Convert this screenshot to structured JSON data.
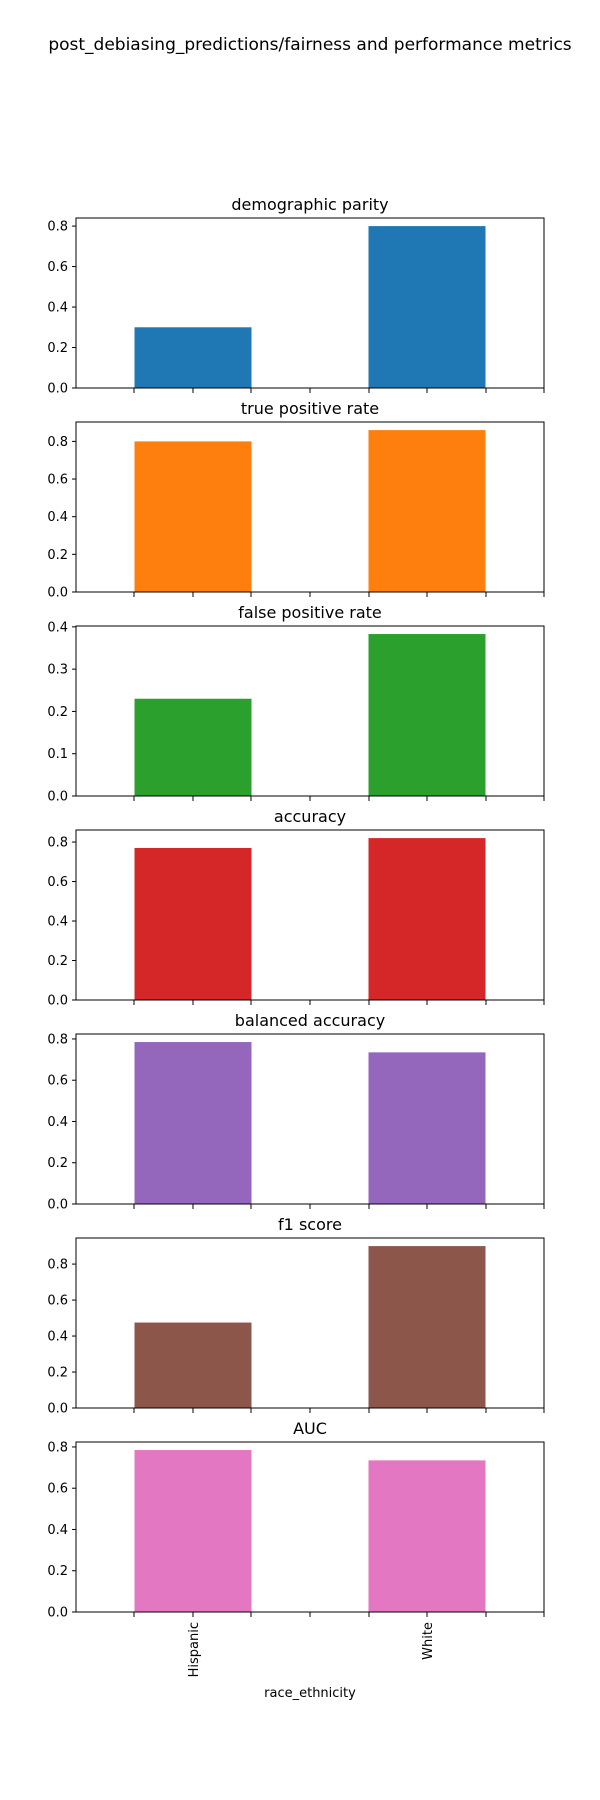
{
  "figure": {
    "title": "post_debiasing_predictions/fairness and performance metrics"
  },
  "chart_data": [
    {
      "type": "bar",
      "title": "demographic parity",
      "categories": [
        "Hispanic",
        "White"
      ],
      "values": [
        0.3,
        0.8
      ],
      "ylim": [
        0,
        0.84
      ],
      "yticks": [
        0.0,
        0.2,
        0.4,
        0.6,
        0.8
      ],
      "ytick_labels": [
        "0.0",
        "0.2",
        "0.4",
        "0.6",
        "0.8"
      ],
      "color": "#1f77b4",
      "grid": false
    },
    {
      "type": "bar",
      "title": "true positive rate",
      "categories": [
        "Hispanic",
        "White"
      ],
      "values": [
        0.8,
        0.86
      ],
      "ylim": [
        0,
        0.903
      ],
      "yticks": [
        0.0,
        0.2,
        0.4,
        0.6,
        0.8
      ],
      "ytick_labels": [
        "0.0",
        "0.2",
        "0.4",
        "0.6",
        "0.8"
      ],
      "color": "#ff7f0e",
      "grid": false
    },
    {
      "type": "bar",
      "title": "false positive rate",
      "categories": [
        "Hispanic",
        "White"
      ],
      "values": [
        0.23,
        0.383
      ],
      "ylim": [
        0,
        0.402
      ],
      "yticks": [
        0.0,
        0.1,
        0.2,
        0.3,
        0.4
      ],
      "ytick_labels": [
        "0.0",
        "0.1",
        "0.2",
        "0.3",
        "0.4"
      ],
      "color": "#2ca02c",
      "grid": false
    },
    {
      "type": "bar",
      "title": "accuracy",
      "categories": [
        "Hispanic",
        "White"
      ],
      "values": [
        0.77,
        0.82
      ],
      "ylim": [
        0,
        0.861
      ],
      "yticks": [
        0.0,
        0.2,
        0.4,
        0.6,
        0.8
      ],
      "ytick_labels": [
        "0.0",
        "0.2",
        "0.4",
        "0.6",
        "0.8"
      ],
      "color": "#d62728",
      "grid": false
    },
    {
      "type": "bar",
      "title": "balanced accuracy",
      "categories": [
        "Hispanic",
        "White"
      ],
      "values": [
        0.785,
        0.735
      ],
      "ylim": [
        0,
        0.824
      ],
      "yticks": [
        0.0,
        0.2,
        0.4,
        0.6,
        0.8
      ],
      "ytick_labels": [
        "0.0",
        "0.2",
        "0.4",
        "0.6",
        "0.8"
      ],
      "color": "#9467bd",
      "grid": false
    },
    {
      "type": "bar",
      "title": "f1 score",
      "categories": [
        "Hispanic",
        "White"
      ],
      "values": [
        0.475,
        0.9
      ],
      "ylim": [
        0,
        0.945
      ],
      "yticks": [
        0.0,
        0.2,
        0.4,
        0.6,
        0.8
      ],
      "ytick_labels": [
        "0.0",
        "0.2",
        "0.4",
        "0.6",
        "0.8"
      ],
      "color": "#8c564b",
      "grid": false
    },
    {
      "type": "bar",
      "title": "AUC",
      "categories": [
        "Hispanic",
        "White"
      ],
      "values": [
        0.785,
        0.735
      ],
      "ylim": [
        0,
        0.824
      ],
      "yticks": [
        0.0,
        0.2,
        0.4,
        0.6,
        0.8
      ],
      "ytick_labels": [
        "0.0",
        "0.2",
        "0.4",
        "0.6",
        "0.8"
      ],
      "color": "#e377c2",
      "grid": false,
      "xlabel": "race_ethnicity",
      "show_xtick_labels": true
    }
  ]
}
